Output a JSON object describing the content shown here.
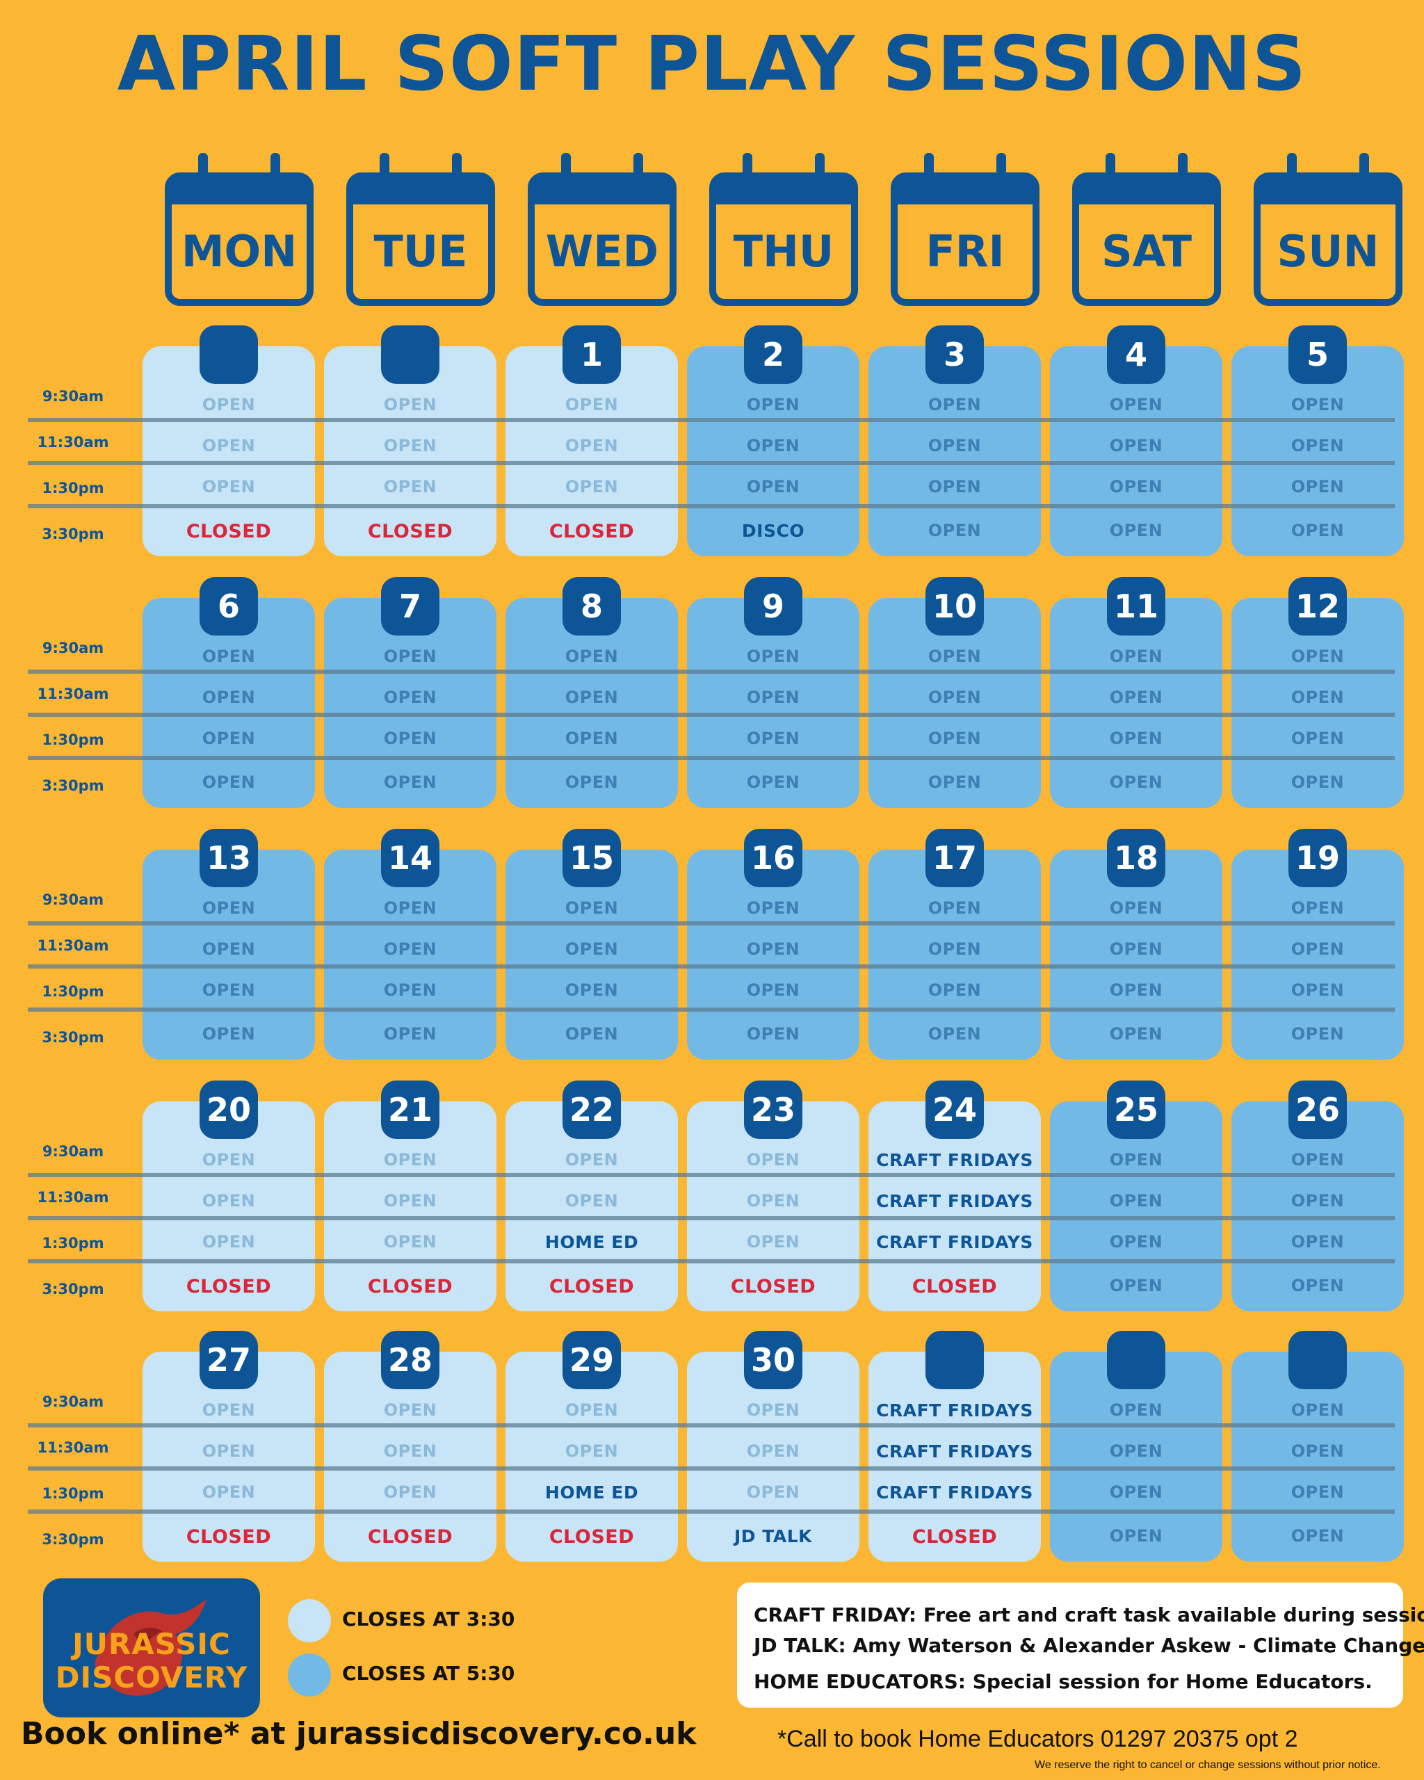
{
  "title": "APRIL SOFT PLAY SESSIONS",
  "days": [
    "MON",
    "TUE",
    "WED",
    "THU",
    "FRI",
    "SAT",
    "SUN"
  ],
  "times": [
    "9:30am",
    "11:30am",
    "1:30pm",
    "3:30pm"
  ],
  "weeks": [
    {
      "cells": [
        {
          "date": "",
          "shade": "light",
          "slots": [
            "OPEN",
            "OPEN",
            "OPEN",
            "CLOSED"
          ]
        },
        {
          "date": "",
          "shade": "light",
          "slots": [
            "OPEN",
            "OPEN",
            "OPEN",
            "CLOSED"
          ]
        },
        {
          "date": "1",
          "shade": "light",
          "slots": [
            "OPEN",
            "OPEN",
            "OPEN",
            "CLOSED"
          ]
        },
        {
          "date": "2",
          "shade": "dark",
          "slots": [
            "OPEN",
            "OPEN",
            "OPEN",
            "DISCO"
          ]
        },
        {
          "date": "3",
          "shade": "dark",
          "slots": [
            "OPEN",
            "OPEN",
            "OPEN",
            "OPEN"
          ]
        },
        {
          "date": "4",
          "shade": "dark",
          "slots": [
            "OPEN",
            "OPEN",
            "OPEN",
            "OPEN"
          ]
        },
        {
          "date": "5",
          "shade": "dark",
          "slots": [
            "OPEN",
            "OPEN",
            "OPEN",
            "OPEN"
          ]
        }
      ]
    },
    {
      "cells": [
        {
          "date": "6",
          "shade": "dark",
          "slots": [
            "OPEN",
            "OPEN",
            "OPEN",
            "OPEN"
          ]
        },
        {
          "date": "7",
          "shade": "dark",
          "slots": [
            "OPEN",
            "OPEN",
            "OPEN",
            "OPEN"
          ]
        },
        {
          "date": "8",
          "shade": "dark",
          "slots": [
            "OPEN",
            "OPEN",
            "OPEN",
            "OPEN"
          ]
        },
        {
          "date": "9",
          "shade": "dark",
          "slots": [
            "OPEN",
            "OPEN",
            "OPEN",
            "OPEN"
          ]
        },
        {
          "date": "10",
          "shade": "dark",
          "slots": [
            "OPEN",
            "OPEN",
            "OPEN",
            "OPEN"
          ]
        },
        {
          "date": "11",
          "shade": "dark",
          "slots": [
            "OPEN",
            "OPEN",
            "OPEN",
            "OPEN"
          ]
        },
        {
          "date": "12",
          "shade": "dark",
          "slots": [
            "OPEN",
            "OPEN",
            "OPEN",
            "OPEN"
          ]
        }
      ]
    },
    {
      "cells": [
        {
          "date": "13",
          "shade": "dark",
          "slots": [
            "OPEN",
            "OPEN",
            "OPEN",
            "OPEN"
          ]
        },
        {
          "date": "14",
          "shade": "dark",
          "slots": [
            "OPEN",
            "OPEN",
            "OPEN",
            "OPEN"
          ]
        },
        {
          "date": "15",
          "shade": "dark",
          "slots": [
            "OPEN",
            "OPEN",
            "OPEN",
            "OPEN"
          ]
        },
        {
          "date": "16",
          "shade": "dark",
          "slots": [
            "OPEN",
            "OPEN",
            "OPEN",
            "OPEN"
          ]
        },
        {
          "date": "17",
          "shade": "dark",
          "slots": [
            "OPEN",
            "OPEN",
            "OPEN",
            "OPEN"
          ]
        },
        {
          "date": "18",
          "shade": "dark",
          "slots": [
            "OPEN",
            "OPEN",
            "OPEN",
            "OPEN"
          ]
        },
        {
          "date": "19",
          "shade": "dark",
          "slots": [
            "OPEN",
            "OPEN",
            "OPEN",
            "OPEN"
          ]
        }
      ]
    },
    {
      "cells": [
        {
          "date": "20",
          "shade": "light",
          "slots": [
            "OPEN",
            "OPEN",
            "OPEN",
            "CLOSED"
          ]
        },
        {
          "date": "21",
          "shade": "light",
          "slots": [
            "OPEN",
            "OPEN",
            "OPEN",
            "CLOSED"
          ]
        },
        {
          "date": "22",
          "shade": "light",
          "slots": [
            "OPEN",
            "OPEN",
            "HOME ED",
            "CLOSED"
          ]
        },
        {
          "date": "23",
          "shade": "light",
          "slots": [
            "OPEN",
            "OPEN",
            "OPEN",
            "CLOSED"
          ]
        },
        {
          "date": "24",
          "shade": "light",
          "slots": [
            "CRAFT FRIDAYS",
            "CRAFT FRIDAYS",
            "CRAFT FRIDAYS",
            "CLOSED"
          ]
        },
        {
          "date": "25",
          "shade": "dark",
          "slots": [
            "OPEN",
            "OPEN",
            "OPEN",
            "OPEN"
          ]
        },
        {
          "date": "26",
          "shade": "dark",
          "slots": [
            "OPEN",
            "OPEN",
            "OPEN",
            "OPEN"
          ]
        }
      ]
    },
    {
      "cells": [
        {
          "date": "27",
          "shade": "light",
          "slots": [
            "OPEN",
            "OPEN",
            "OPEN",
            "CLOSED"
          ]
        },
        {
          "date": "28",
          "shade": "light",
          "slots": [
            "OPEN",
            "OPEN",
            "OPEN",
            "CLOSED"
          ]
        },
        {
          "date": "29",
          "shade": "light",
          "slots": [
            "OPEN",
            "OPEN",
            "HOME ED",
            "CLOSED"
          ]
        },
        {
          "date": "30",
          "shade": "light",
          "slots": [
            "OPEN",
            "OPEN",
            "OPEN",
            "JD TALK"
          ]
        },
        {
          "date": "",
          "shade": "light",
          "slots": [
            "CRAFT FRIDAYS",
            "CRAFT FRIDAYS",
            "CRAFT FRIDAYS",
            "CLOSED"
          ]
        },
        {
          "date": "",
          "shade": "dark",
          "slots": [
            "OPEN",
            "OPEN",
            "OPEN",
            "OPEN"
          ]
        },
        {
          "date": "",
          "shade": "dark",
          "slots": [
            "OPEN",
            "OPEN",
            "OPEN",
            "OPEN"
          ]
        }
      ]
    }
  ],
  "logo": {
    "line1": "JURASSIC",
    "line2": "DISCOVERY"
  },
  "legend": {
    "light_label": "CLOSES AT 3:30",
    "dark_label": "CLOSES AT 5:30"
  },
  "colors": {
    "background": "#FBB634",
    "navy": "#0E5597",
    "light_cell": "#C7E5F6",
    "dark_cell": "#73B9E6",
    "closed": "#D9263A"
  },
  "book_online": "Book online* at jurassicdiscovery.co.uk",
  "info": {
    "craft": "CRAFT FRIDAY: Free art and craft task available during session.",
    "jdtalk": "JD TALK: Amy Waterson & Alexander Askew - Climate Change",
    "homeed": "HOME EDUCATORS: Special session for Home Educators."
  },
  "call_note": "*Call to book Home Educators 01297 20375 opt 2",
  "disclaimer": "We reserve the right to cancel or change sessions without prior notice."
}
